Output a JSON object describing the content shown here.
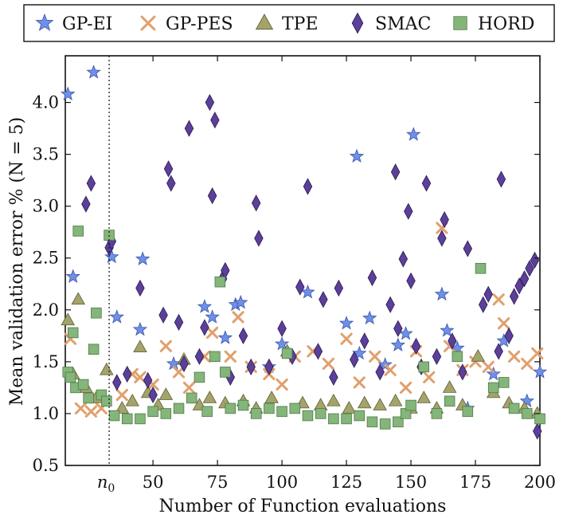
{
  "chart_data": {
    "type": "scatter",
    "xlabel": "Number of Function evaluations",
    "ylabel": "Mean validation error % (N = 5)",
    "xlim": [
      16,
      200
    ],
    "ylim": [
      0.5,
      4.45
    ],
    "x_ticks": [
      50,
      75,
      100,
      125,
      150,
      175,
      200
    ],
    "y_ticks": [
      0.5,
      1.0,
      1.5,
      2.0,
      2.5,
      3.0,
      3.5,
      4.0
    ],
    "marker_annotation": {
      "x": 33,
      "label": "n0",
      "style": "dotted vertical line"
    },
    "legend_position": "top (outside, above plot)",
    "grid": false,
    "series": [
      {
        "name": "GP-EI",
        "marker": "star",
        "color": "#6f8fe8",
        "points": [
          [
            17,
            4.08
          ],
          [
            19,
            2.32
          ],
          [
            27,
            4.29
          ],
          [
            34,
            2.51
          ],
          [
            36,
            1.93
          ],
          [
            45,
            1.81
          ],
          [
            46,
            2.49
          ],
          [
            58,
            1.48
          ],
          [
            70,
            2.03
          ],
          [
            73,
            1.93
          ],
          [
            78,
            1.73
          ],
          [
            82,
            2.05
          ],
          [
            84,
            2.07
          ],
          [
            95,
            1.45
          ],
          [
            100,
            1.67
          ],
          [
            110,
            2.17
          ],
          [
            125,
            1.87
          ],
          [
            129,
            3.48
          ],
          [
            130,
            1.58
          ],
          [
            134,
            1.92
          ],
          [
            140,
            1.47
          ],
          [
            145,
            1.66
          ],
          [
            148,
            1.77
          ],
          [
            151,
            3.69
          ],
          [
            162,
            2.15
          ],
          [
            164,
            1.8
          ],
          [
            168,
            1.63
          ],
          [
            172,
            1.05
          ],
          [
            182,
            1.38
          ],
          [
            186,
            1.7
          ],
          [
            195,
            1.12
          ],
          [
            200,
            1.4
          ]
        ]
      },
      {
        "name": "GP-PES",
        "marker": "x",
        "color": "#e0a06d",
        "points": [
          [
            18,
            1.72
          ],
          [
            22,
            1.05
          ],
          [
            26,
            1.02
          ],
          [
            30,
            1.05
          ],
          [
            38,
            1.18
          ],
          [
            42,
            1.38
          ],
          [
            45,
            1.35
          ],
          [
            50,
            1.28
          ],
          [
            55,
            1.65
          ],
          [
            60,
            1.4
          ],
          [
            64,
            1.25
          ],
          [
            70,
            1.55
          ],
          [
            73,
            1.78
          ],
          [
            80,
            1.55
          ],
          [
            83,
            1.93
          ],
          [
            88,
            1.45
          ],
          [
            95,
            1.38
          ],
          [
            100,
            1.28
          ],
          [
            105,
            1.55
          ],
          [
            112,
            1.6
          ],
          [
            118,
            1.48
          ],
          [
            125,
            1.72
          ],
          [
            130,
            1.3
          ],
          [
            136,
            1.55
          ],
          [
            142,
            1.42
          ],
          [
            148,
            1.25
          ],
          [
            152,
            1.6
          ],
          [
            157,
            1.35
          ],
          [
            162,
            2.79
          ],
          [
            165,
            1.65
          ],
          [
            170,
            1.42
          ],
          [
            175,
            1.5
          ],
          [
            180,
            1.45
          ],
          [
            184,
            2.1
          ],
          [
            186,
            1.87
          ],
          [
            190,
            1.55
          ],
          [
            195,
            1.48
          ],
          [
            199,
            1.58
          ]
        ]
      },
      {
        "name": "TPE",
        "marker": "triangle",
        "color": "#a3a36b",
        "points": [
          [
            17,
            1.9
          ],
          [
            19,
            1.38
          ],
          [
            21,
            2.1
          ],
          [
            24,
            1.25
          ],
          [
            28,
            1.15
          ],
          [
            32,
            1.42
          ],
          [
            38,
            1.05
          ],
          [
            42,
            1.12
          ],
          [
            45,
            1.64
          ],
          [
            48,
            1.2
          ],
          [
            52,
            1.08
          ],
          [
            55,
            1.18
          ],
          [
            62,
            1.52
          ],
          [
            68,
            1.08
          ],
          [
            72,
            1.15
          ],
          [
            78,
            1.1
          ],
          [
            85,
            1.12
          ],
          [
            90,
            1.05
          ],
          [
            96,
            1.15
          ],
          [
            102,
            1.6
          ],
          [
            108,
            1.1
          ],
          [
            115,
            1.08
          ],
          [
            120,
            1.12
          ],
          [
            126,
            1.05
          ],
          [
            132,
            1.1
          ],
          [
            138,
            1.08
          ],
          [
            144,
            1.12
          ],
          [
            150,
            1.05
          ],
          [
            155,
            1.15
          ],
          [
            160,
            1.05
          ],
          [
            165,
            1.25
          ],
          [
            170,
            1.08
          ],
          [
            176,
            1.55
          ],
          [
            182,
            1.2
          ],
          [
            188,
            1.1
          ],
          [
            194,
            1.05
          ],
          [
            199,
            1.0
          ]
        ]
      },
      {
        "name": "SMAC",
        "marker": "diamond",
        "color": "#5b3f98",
        "points": [
          [
            24,
            3.02
          ],
          [
            26,
            3.22
          ],
          [
            33,
            2.6
          ],
          [
            34,
            2.66
          ],
          [
            36,
            1.3
          ],
          [
            40,
            1.38
          ],
          [
            45,
            2.21
          ],
          [
            48,
            1.32
          ],
          [
            50,
            1.18
          ],
          [
            54,
            1.95
          ],
          [
            56,
            3.36
          ],
          [
            57,
            3.22
          ],
          [
            60,
            1.88
          ],
          [
            62,
            1.48
          ],
          [
            64,
            3.75
          ],
          [
            68,
            1.55
          ],
          [
            70,
            1.83
          ],
          [
            72,
            4.0
          ],
          [
            73,
            3.1
          ],
          [
            74,
            3.83
          ],
          [
            77,
            2.3
          ],
          [
            78,
            2.38
          ],
          [
            80,
            1.35
          ],
          [
            85,
            1.75
          ],
          [
            88,
            1.45
          ],
          [
            90,
            3.03
          ],
          [
            91,
            2.69
          ],
          [
            95,
            1.45
          ],
          [
            100,
            1.82
          ],
          [
            104,
            1.55
          ],
          [
            107,
            2.22
          ],
          [
            110,
            3.19
          ],
          [
            114,
            1.6
          ],
          [
            116,
            2.1
          ],
          [
            120,
            1.35
          ],
          [
            122,
            2.21
          ],
          [
            128,
            1.52
          ],
          [
            132,
            1.7
          ],
          [
            135,
            2.31
          ],
          [
            138,
            1.4
          ],
          [
            142,
            2.05
          ],
          [
            144,
            3.33
          ],
          [
            145,
            1.82
          ],
          [
            147,
            2.49
          ],
          [
            149,
            2.95
          ],
          [
            150,
            2.28
          ],
          [
            152,
            1.65
          ],
          [
            154,
            1.45
          ],
          [
            156,
            3.22
          ],
          [
            160,
            1.55
          ],
          [
            162,
            2.69
          ],
          [
            163,
            2.87
          ],
          [
            166,
            1.7
          ],
          [
            170,
            1.4
          ],
          [
            172,
            2.59
          ],
          [
            178,
            2.05
          ],
          [
            180,
            2.15
          ],
          [
            184,
            1.6
          ],
          [
            185,
            3.26
          ],
          [
            188,
            1.75
          ],
          [
            190,
            2.13
          ],
          [
            192,
            2.23
          ],
          [
            194,
            2.3
          ],
          [
            196,
            2.4
          ],
          [
            198,
            2.48
          ],
          [
            199,
            0.83
          ]
        ]
      },
      {
        "name": "HORD",
        "marker": "square",
        "color": "#84b57a",
        "points": [
          [
            17,
            1.4
          ],
          [
            18,
            1.35
          ],
          [
            19,
            1.78
          ],
          [
            20,
            1.25
          ],
          [
            21,
            2.76
          ],
          [
            23,
            1.28
          ],
          [
            25,
            1.15
          ],
          [
            27,
            1.62
          ],
          [
            28,
            1.97
          ],
          [
            30,
            1.18
          ],
          [
            32,
            1.12
          ],
          [
            33,
            2.72
          ],
          [
            35,
            0.98
          ],
          [
            40,
            0.95
          ],
          [
            45,
            0.95
          ],
          [
            50,
            1.02
          ],
          [
            55,
            1.0
          ],
          [
            60,
            1.05
          ],
          [
            65,
            1.15
          ],
          [
            68,
            1.35
          ],
          [
            71,
            1.02
          ],
          [
            74,
            1.55
          ],
          [
            76,
            2.27
          ],
          [
            78,
            1.4
          ],
          [
            80,
            1.05
          ],
          [
            85,
            1.08
          ],
          [
            90,
            1.0
          ],
          [
            95,
            1.05
          ],
          [
            100,
            1.02
          ],
          [
            102,
            1.58
          ],
          [
            105,
            1.05
          ],
          [
            110,
            0.98
          ],
          [
            115,
            1.0
          ],
          [
            120,
            0.95
          ],
          [
            125,
            0.95
          ],
          [
            130,
            0.98
          ],
          [
            135,
            0.92
          ],
          [
            140,
            0.9
          ],
          [
            145,
            0.92
          ],
          [
            148,
            1.0
          ],
          [
            150,
            1.08
          ],
          [
            155,
            1.45
          ],
          [
            160,
            1.0
          ],
          [
            165,
            1.12
          ],
          [
            168,
            1.55
          ],
          [
            172,
            1.02
          ],
          [
            177,
            2.4
          ],
          [
            182,
            1.25
          ],
          [
            186,
            1.3
          ],
          [
            190,
            1.05
          ],
          [
            195,
            1.0
          ],
          [
            200,
            0.95
          ]
        ]
      }
    ]
  }
}
